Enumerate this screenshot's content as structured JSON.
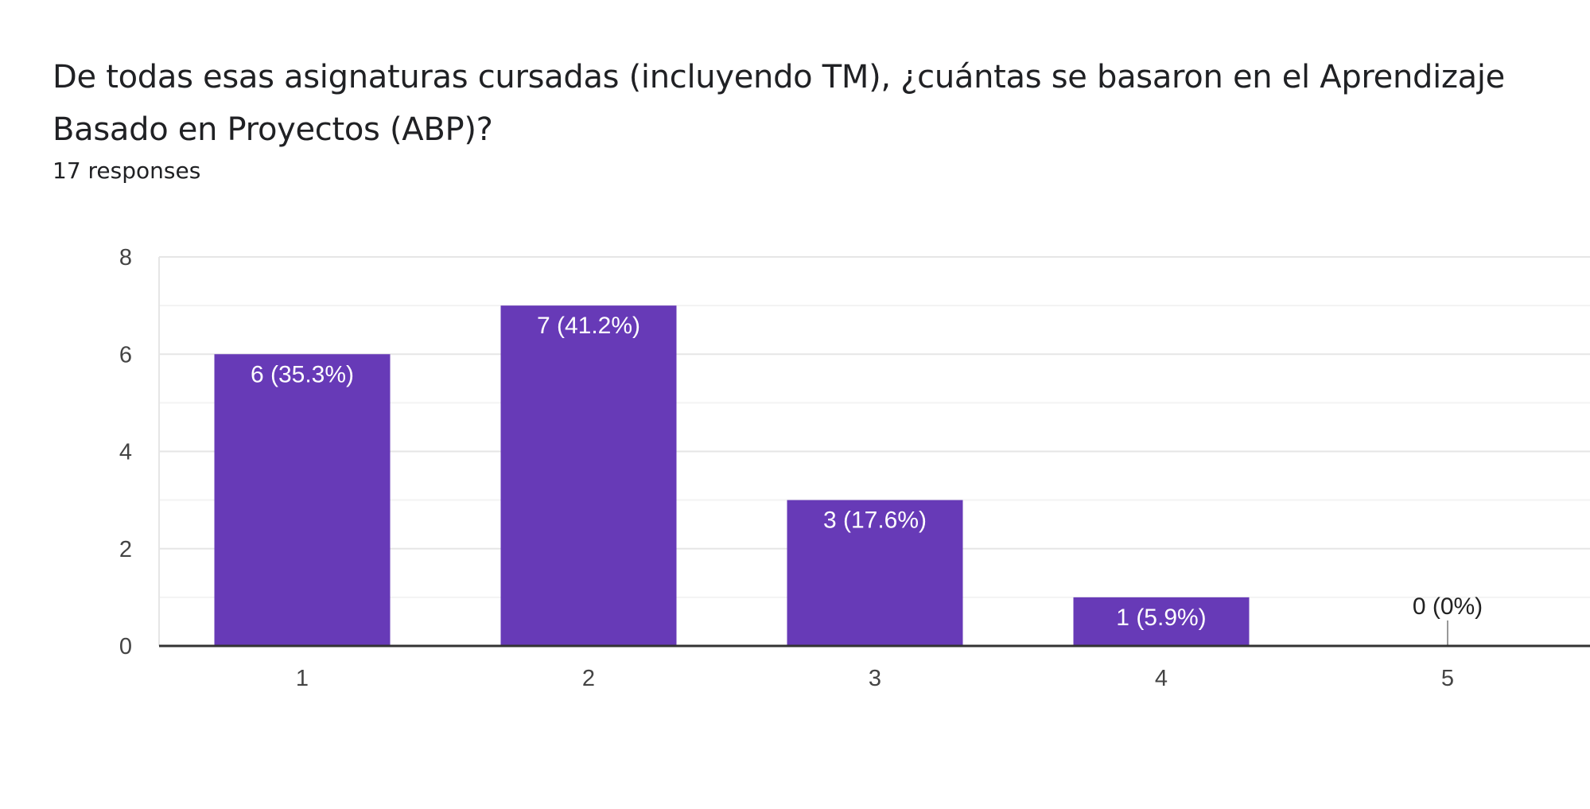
{
  "header": {
    "question": "De todas esas asignaturas cursadas (incluyendo TM), ¿cuántas se basaron en el Aprendizaje Basado en Proyectos (ABP)?",
    "responses": "17 responses"
  },
  "colors": {
    "bar": "#673ab7",
    "grid_major": "#e6e6e6",
    "grid_minor": "#f3f3f3",
    "axis": "#333333",
    "label_inside": "#ffffff",
    "label_outside": "#222222"
  },
  "chart_data": {
    "type": "bar",
    "categories": [
      "1",
      "2",
      "3",
      "4",
      "5"
    ],
    "values": [
      6,
      7,
      3,
      1,
      0
    ],
    "labels": [
      "6 (35.3%)",
      "7 (41.2%)",
      "3 (17.6%)",
      "1 (5.9%)",
      "0 (0%)"
    ],
    "title": "De todas esas asignaturas cursadas (incluyendo TM), ¿cuántas se basaron en el Aprendizaje Basado en Proyectos (ABP)?",
    "xlabel": "",
    "ylabel": "",
    "ylim": [
      0,
      8
    ],
    "yticks": [
      0,
      2,
      4,
      6,
      8
    ],
    "grid": true,
    "legend": "none"
  }
}
